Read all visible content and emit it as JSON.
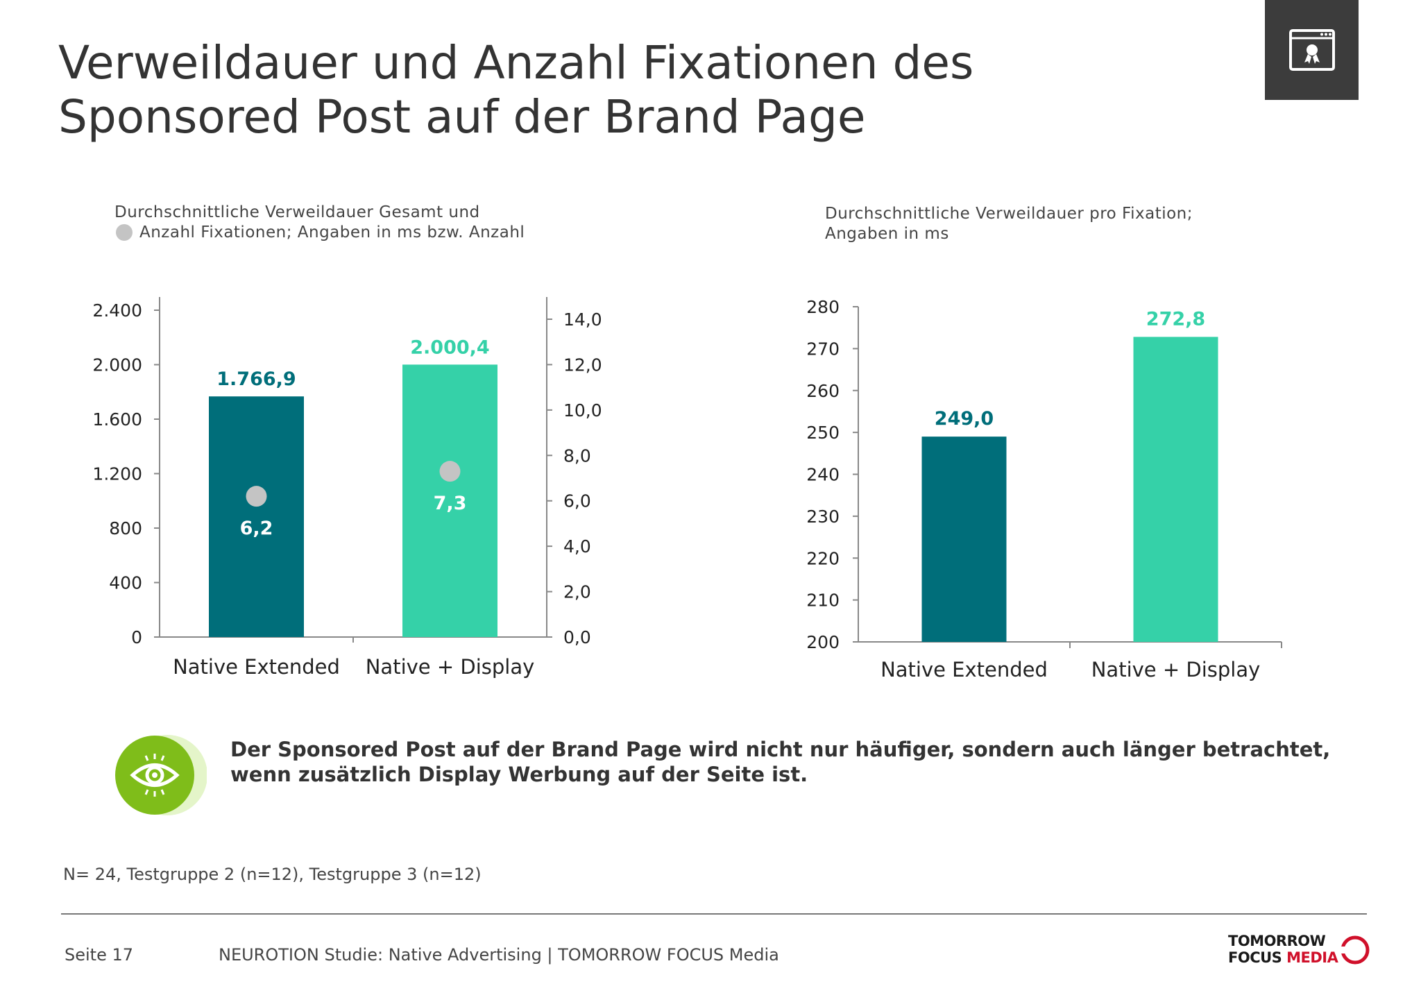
{
  "title": {
    "line1": "Verweildauer und Anzahl Fixationen des",
    "line2": "Sponsored Post auf der Brand Page"
  },
  "corner_icon": "award-certificate-icon",
  "chart_data": [
    {
      "type": "bar",
      "subtitle": [
        "Durchschnittliche Verweildauer Gesamt und",
        "Anzahl Fixationen; Angaben in ms bzw. Anzahl"
      ],
      "categories": [
        "Native Extended",
        "Native + Display"
      ],
      "series": [
        {
          "values": [
            1766.9,
            2000.4
          ],
          "labels": [
            "1.766,9",
            "2.000,4"
          ],
          "colors": [
            "#006e7a",
            "#35d1a8"
          ],
          "axis": "left"
        },
        {
          "type": "scatter",
          "values": [
            6.2,
            7.3
          ],
          "labels": [
            "6,2",
            "7,3"
          ],
          "color": "#c4c4c4",
          "axis": "right"
        }
      ],
      "y_left": {
        "ylim": [
          0,
          2400
        ],
        "ticks": [
          0,
          400,
          800,
          1200,
          1600,
          2000,
          2400
        ],
        "tick_labels": [
          "0",
          "400",
          "800",
          "1.200",
          "1.600",
          "2.000",
          "2.400"
        ]
      },
      "y_right": {
        "ylim": [
          0,
          14
        ],
        "ticks": [
          0,
          2,
          4,
          6,
          8,
          10,
          12,
          14
        ],
        "tick_labels": [
          "0,0",
          "2,0",
          "4,0",
          "6,0",
          "8,0",
          "10,0",
          "12,0",
          "14,0"
        ]
      },
      "grid": false
    },
    {
      "type": "bar",
      "subtitle": [
        "Durchschnittliche Verweildauer pro Fixation;",
        "Angaben in ms"
      ],
      "categories": [
        "Native Extended",
        "Native + Display"
      ],
      "series": [
        {
          "values": [
            249.0,
            272.8
          ],
          "labels": [
            "249,0",
            "272,8"
          ],
          "colors": [
            "#006e7a",
            "#35d1a8"
          ],
          "axis": "left"
        }
      ],
      "y_left": {
        "ylim": [
          200,
          280
        ],
        "ticks": [
          200,
          210,
          220,
          230,
          240,
          250,
          260,
          270,
          280
        ],
        "tick_labels": [
          "200",
          "210",
          "220",
          "230",
          "240",
          "250",
          "260",
          "270",
          "280"
        ]
      },
      "grid": false
    }
  ],
  "callout": {
    "icon": "eye-icon",
    "text": "Der Sponsored Post auf der Brand Page wird nicht nur häufiger, sondern auch länger betrachtet, wenn zusätzlich Display Werbung auf der Seite ist."
  },
  "sample_note": "N= 24, Testgruppe 2 (n=12), Testgruppe 3 (n=12)",
  "footer": {
    "page": "Seite 17",
    "source": "NEUROTION Studie: Native Advertising | TOMORROW FOCUS Media",
    "logo_line1": "TOMORROW",
    "logo_line2a": "FOCUS",
    "logo_line2b": "MEDIA"
  }
}
